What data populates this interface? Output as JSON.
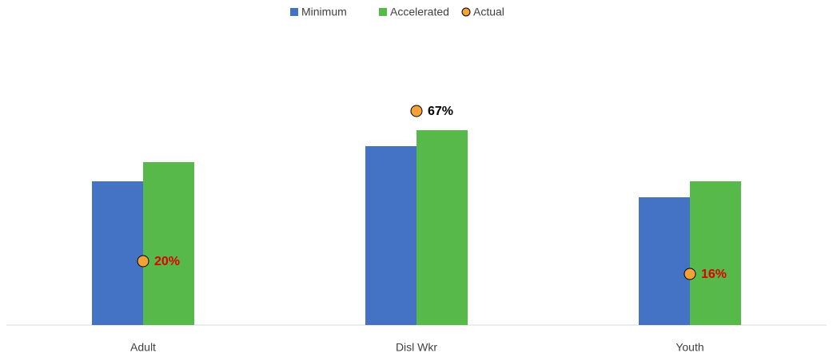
{
  "chart_data": {
    "type": "bar",
    "categories": [
      "Adult",
      "Disl Wkr",
      "Youth"
    ],
    "series": [
      {
        "name": "Minimum",
        "color": "#4472c4",
        "values": [
          45,
          56,
          40
        ]
      },
      {
        "name": "Accelerated",
        "color": "#56b94a",
        "values": [
          51,
          61,
          45
        ]
      },
      {
        "name": "Actual",
        "type": "scatter",
        "color": "#f4a236",
        "values": [
          20,
          67,
          16
        ],
        "value_labels": [
          "20%",
          "67%",
          "16%"
        ],
        "label_colors": [
          "#e00000",
          "#000000",
          "#e00000"
        ]
      }
    ],
    "ylim": [
      0,
      100
    ]
  }
}
